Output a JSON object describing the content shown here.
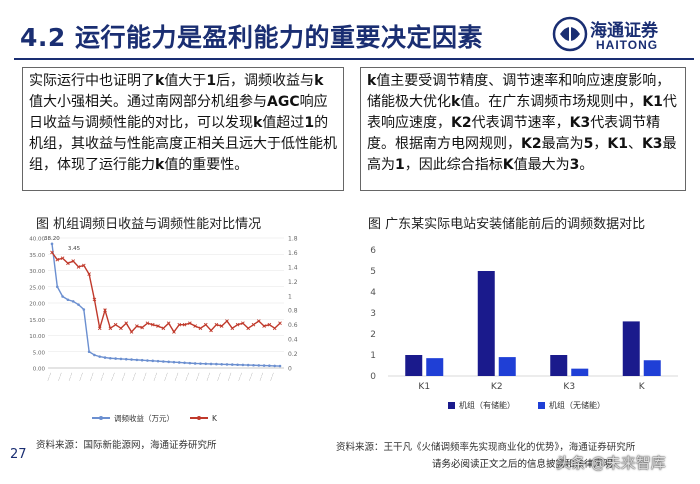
{
  "header": {
    "title": "4.2 运行能力是盈利能力的重要决定因素",
    "logo_cn": "海通证券",
    "logo_en": "HAITONG"
  },
  "boxes": {
    "left": [
      {
        "t": "实际运行中也证明了",
        "b": false
      },
      {
        "t": "k",
        "b": true
      },
      {
        "t": "值大于",
        "b": false
      },
      {
        "t": "1",
        "b": true
      },
      {
        "t": "后，调频收益与",
        "b": false
      },
      {
        "t": "k",
        "b": true
      },
      {
        "t": "值大小强相关。通过南网部分机组参与",
        "b": false
      },
      {
        "t": "AGC",
        "b": true
      },
      {
        "t": "响应日收益与调频性能的对比，可以发现",
        "b": false
      },
      {
        "t": "k",
        "b": true
      },
      {
        "t": "值超过",
        "b": false
      },
      {
        "t": "1",
        "b": true
      },
      {
        "t": "的机组，其收益与性能高度正相关且远大于低性能机组，体现了运行能力",
        "b": false
      },
      {
        "t": "k",
        "b": true
      },
      {
        "t": "值的重要性。",
        "b": false
      }
    ],
    "right": [
      {
        "t": "k",
        "b": true
      },
      {
        "t": "值主要受调节精度、调节速率和响应速度影响，储能极大优化",
        "b": false
      },
      {
        "t": "k",
        "b": true
      },
      {
        "t": "值。在广东调频市场规则中，",
        "b": false
      },
      {
        "t": "K1",
        "b": true
      },
      {
        "t": "代表响应速度，",
        "b": false
      },
      {
        "t": "K2",
        "b": true
      },
      {
        "t": "代表调节速率，",
        "b": false
      },
      {
        "t": "K3",
        "b": true
      },
      {
        "t": "代表调节精度。根据南方电网规则，",
        "b": false
      },
      {
        "t": "K2",
        "b": true
      },
      {
        "t": "最高为",
        "b": false
      },
      {
        "t": "5",
        "b": true
      },
      {
        "t": "，",
        "b": false
      },
      {
        "t": "K1",
        "b": true
      },
      {
        "t": "、",
        "b": false
      },
      {
        "t": "K3",
        "b": true
      },
      {
        "t": "最高为",
        "b": false
      },
      {
        "t": "1",
        "b": true
      },
      {
        "t": "，因此综合指标",
        "b": false
      },
      {
        "t": "K",
        "b": true
      },
      {
        "t": "值最大为",
        "b": false
      },
      {
        "t": "3",
        "b": true
      },
      {
        "t": "。",
        "b": false
      }
    ]
  },
  "figures": {
    "left_title": "图  机组调频日收益与调频性能对比情况",
    "right_title": "图  广东某实际电站安装储能前后的调频数据对比",
    "left_source": "资料来源：国际新能源网，海通证券研究所",
    "right_source": "资料来源：王干凡《火储调频率先实现商业化的优势》，海通证券研究所"
  },
  "footer": {
    "page_number": "27",
    "disclaimer": "请务必阅读正文之后的信息披露和法律声明",
    "watermark": "头条 @未来智库"
  },
  "colors": {
    "navy": "#1a2e72",
    "bar_dark": "#1a1a8c",
    "bar_light": "#1f3fd6",
    "line_blue": "#6b8fd0",
    "line_red": "#c0392b"
  },
  "chart_data": [
    {
      "type": "line",
      "title": "",
      "x_count": 44,
      "y_left_ticks": [
        "0.00",
        "5.00",
        "10.00",
        "15.00",
        "20.00",
        "25.00",
        "30.00",
        "35.00",
        "40.00"
      ],
      "y_right_ticks": [
        "0",
        "0.2",
        "0.4",
        "0.6",
        "0.8",
        "1",
        "1.2",
        "1.4",
        "1.6",
        "1.8"
      ],
      "ylim_left": [
        0,
        40
      ],
      "ylim_right": [
        0,
        1.8
      ],
      "annotations": [
        "38.20",
        "3.45"
      ],
      "series": [
        {
          "name": "调频收益（万元）",
          "axis": "left",
          "values": [
            38.2,
            25,
            22,
            21,
            20.5,
            19.5,
            18,
            5,
            4,
            3.5,
            3.2,
            3.0,
            2.9,
            2.8,
            2.7,
            2.6,
            2.5,
            2.4,
            2.3,
            2.2,
            2.1,
            2.0,
            1.9,
            1.8,
            1.7,
            1.6,
            1.5,
            1.4,
            1.35,
            1.3,
            1.25,
            1.2,
            1.15,
            1.1,
            1.05,
            1.0,
            0.95,
            0.9,
            0.85,
            0.8,
            0.75,
            0.7,
            0.65,
            0.6
          ]
        },
        {
          "name": "K",
          "axis": "right",
          "values": [
            1.6,
            1.5,
            1.52,
            1.45,
            1.48,
            1.4,
            1.42,
            1.3,
            0.95,
            0.55,
            0.8,
            0.55,
            0.6,
            0.55,
            0.62,
            0.5,
            0.58,
            0.56,
            0.62,
            0.6,
            0.58,
            0.55,
            0.62,
            0.5,
            0.6,
            0.6,
            0.62,
            0.58,
            0.55,
            0.6,
            0.52,
            0.6,
            0.58,
            0.65,
            0.55,
            0.6,
            0.62,
            0.55,
            0.6,
            0.65,
            0.58,
            0.6,
            0.55,
            0.62
          ]
        }
      ]
    },
    {
      "type": "bar",
      "title": "",
      "categories": [
        "K1",
        "K2",
        "K3",
        "K"
      ],
      "ylim": [
        0,
        6
      ],
      "y_ticks": [
        "0",
        "1",
        "2",
        "3",
        "4",
        "5",
        "6"
      ],
      "series": [
        {
          "name": "机组（有储能）",
          "values": [
            1.0,
            5.0,
            1.0,
            2.6
          ]
        },
        {
          "name": "机组（无储能）",
          "values": [
            0.85,
            0.9,
            0.35,
            0.75
          ]
        }
      ]
    }
  ]
}
